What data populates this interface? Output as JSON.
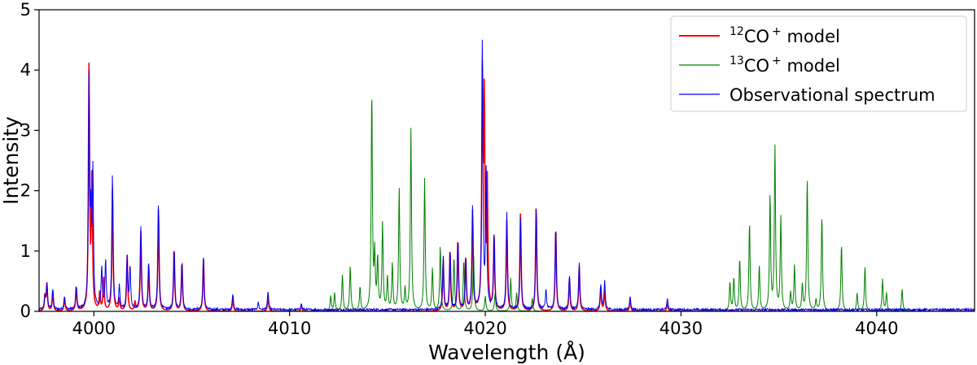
{
  "chart_data": {
    "type": "line",
    "title": "",
    "xlabel": "Wavelength (Å)",
    "ylabel": "Intensity",
    "xlim": [
      3997.2,
      4045
    ],
    "ylim": [
      0,
      5
    ],
    "xticks": [
      4000,
      4010,
      4020,
      4030,
      4040
    ],
    "yticks": [
      0,
      1,
      2,
      3,
      4,
      5
    ],
    "grid": false,
    "legend_position": "top-right",
    "line_width_fwhm": 0.07,
    "series": [
      {
        "name": "¹²CO⁺ model",
        "legend": {
          "sup": "12",
          "main": "CO",
          "sup2": "+",
          "tail": " model"
        },
        "color": "#ff0000",
        "baseline": 0.0,
        "peaks": [
          [
            3997.5,
            0.25
          ],
          [
            3997.6,
            0.45
          ],
          [
            3997.9,
            0.33
          ],
          [
            3998.5,
            0.22
          ],
          [
            3999.1,
            0.4
          ],
          [
            3999.75,
            4.0
          ],
          [
            3999.9,
            2.28
          ],
          [
            4000.5,
            0.55
          ],
          [
            4000.3,
            0.3
          ],
          [
            4000.95,
            2.05
          ],
          [
            4001.3,
            0.2
          ],
          [
            4001.7,
            0.92
          ],
          [
            4002.1,
            0.15
          ],
          [
            4002.4,
            1.32
          ],
          [
            4002.8,
            0.76
          ],
          [
            4003.3,
            1.72
          ],
          [
            4004.1,
            1.05
          ],
          [
            4004.5,
            0.82
          ],
          [
            4005.6,
            0.88
          ],
          [
            4007.1,
            0.22
          ],
          [
            4008.9,
            0.25
          ],
          [
            4010.6,
            0.1
          ],
          [
            4017.85,
            0.85
          ],
          [
            4018.2,
            1.0
          ],
          [
            4018.6,
            1.2
          ],
          [
            4019.0,
            0.9
          ],
          [
            4019.35,
            1.65
          ],
          [
            4019.85,
            3.85
          ],
          [
            4019.95,
            3.35
          ],
          [
            4020.1,
            2.1
          ],
          [
            4020.45,
            1.25
          ],
          [
            4021.1,
            1.5
          ],
          [
            4021.8,
            1.62
          ],
          [
            4022.6,
            1.75
          ],
          [
            4023.6,
            1.4
          ],
          [
            4024.3,
            0.55
          ],
          [
            4024.8,
            0.75
          ],
          [
            4025.9,
            0.4
          ],
          [
            4026.1,
            0.35
          ],
          [
            4027.4,
            0.2
          ],
          [
            4029.3,
            0.15
          ]
        ]
      },
      {
        "name": "¹³CO⁺ model",
        "legend": {
          "sup": "13",
          "main": "CO",
          "sup2": "+",
          "tail": " model"
        },
        "color": "#008000",
        "baseline": 0.0,
        "peaks": [
          [
            4012.1,
            0.25
          ],
          [
            4012.3,
            0.3
          ],
          [
            4012.7,
            0.6
          ],
          [
            4013.1,
            0.75
          ],
          [
            4013.6,
            0.4
          ],
          [
            4014.2,
            3.65
          ],
          [
            4014.35,
            0.9
          ],
          [
            4014.5,
            0.85
          ],
          [
            4014.75,
            1.45
          ],
          [
            4015.0,
            0.55
          ],
          [
            4015.25,
            0.78
          ],
          [
            4015.6,
            2.03
          ],
          [
            4015.9,
            0.35
          ],
          [
            4016.2,
            3.02
          ],
          [
            4016.9,
            2.2
          ],
          [
            4017.3,
            0.7
          ],
          [
            4017.7,
            1.08
          ],
          [
            4018.4,
            0.9
          ],
          [
            4018.9,
            0.85
          ],
          [
            4019.4,
            0.95
          ],
          [
            4020.0,
            0.25
          ],
          [
            4020.5,
            0.3
          ],
          [
            4021.3,
            0.55
          ],
          [
            4021.6,
            0.3
          ],
          [
            4022.4,
            0.22
          ],
          [
            4032.5,
            0.48
          ],
          [
            4032.7,
            0.55
          ],
          [
            4033.0,
            0.87
          ],
          [
            4033.5,
            1.48
          ],
          [
            4034.0,
            0.75
          ],
          [
            4034.55,
            1.92
          ],
          [
            4034.8,
            2.72
          ],
          [
            4035.1,
            1.55
          ],
          [
            4035.6,
            0.3
          ],
          [
            4035.8,
            0.75
          ],
          [
            4036.2,
            0.42
          ],
          [
            4036.45,
            2.2
          ],
          [
            4036.9,
            0.18
          ],
          [
            4037.2,
            1.58
          ],
          [
            4038.2,
            1.12
          ],
          [
            4039.0,
            0.3
          ],
          [
            4039.4,
            0.73
          ],
          [
            4040.3,
            0.53
          ],
          [
            4040.5,
            0.3
          ],
          [
            4041.3,
            0.37
          ]
        ]
      },
      {
        "name": "Observational spectrum",
        "legend": {
          "sup": "",
          "main": "Observational spectrum",
          "sup2": "",
          "tail": ""
        },
        "color": "#0000ff",
        "baseline": 0.03,
        "peaks": [
          [
            3997.5,
            0.22
          ],
          [
            3997.6,
            0.42
          ],
          [
            3997.9,
            0.33
          ],
          [
            3998.5,
            0.22
          ],
          [
            3999.1,
            0.38
          ],
          [
            3999.75,
            3.75
          ],
          [
            3999.85,
            1.35
          ],
          [
            3999.95,
            2.2
          ],
          [
            4000.4,
            0.7
          ],
          [
            4000.6,
            0.8
          ],
          [
            4000.95,
            2.25
          ],
          [
            4001.3,
            0.38
          ],
          [
            4001.7,
            0.85
          ],
          [
            4001.85,
            0.7
          ],
          [
            4002.4,
            1.38
          ],
          [
            4002.8,
            0.75
          ],
          [
            4003.3,
            1.75
          ],
          [
            4004.1,
            1.0
          ],
          [
            4004.5,
            0.8
          ],
          [
            4005.6,
            0.88
          ],
          [
            4007.1,
            0.27
          ],
          [
            4008.4,
            0.12
          ],
          [
            4008.9,
            0.3
          ],
          [
            4010.6,
            0.1
          ],
          [
            4017.85,
            0.88
          ],
          [
            4018.2,
            1.0
          ],
          [
            4018.6,
            1.15
          ],
          [
            4019.0,
            0.85
          ],
          [
            4019.35,
            1.68
          ],
          [
            4019.85,
            4.48
          ],
          [
            4020.05,
            2.28
          ],
          [
            4020.45,
            1.25
          ],
          [
            4021.1,
            1.6
          ],
          [
            4021.8,
            1.55
          ],
          [
            4022.6,
            1.72
          ],
          [
            4023.1,
            0.32
          ],
          [
            4023.6,
            1.38
          ],
          [
            4024.3,
            0.58
          ],
          [
            4024.8,
            0.78
          ],
          [
            4025.9,
            0.42
          ],
          [
            4026.1,
            0.47
          ],
          [
            4027.4,
            0.22
          ],
          [
            4029.3,
            0.18
          ]
        ]
      }
    ]
  }
}
